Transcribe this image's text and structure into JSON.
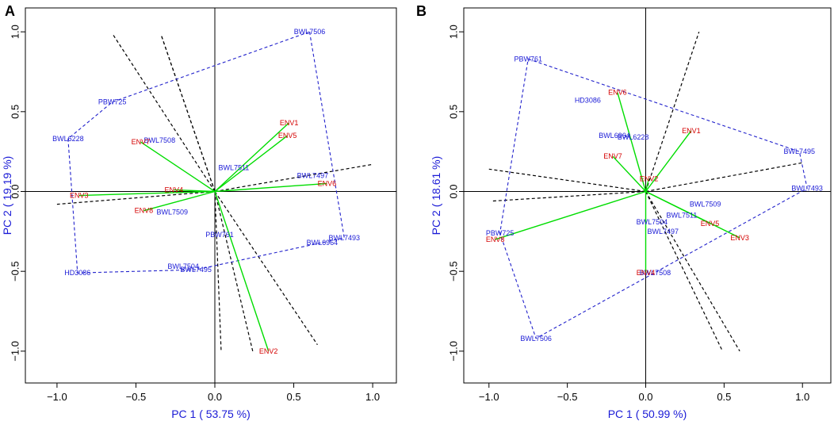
{
  "colors": {
    "genotype": "#1a1ad6",
    "environment": "#d40000",
    "vector": "#00dd00",
    "hull": "#2222cc",
    "sector": "#000000",
    "axis_label": "#1a1ad6"
  },
  "chart_data": [
    {
      "type": "scatter",
      "panel": "A",
      "xlabel": "PC 1 ( 53.75 %)",
      "ylabel": "PC 2 ( 19.19 %)",
      "xlim": [
        -1.1,
        1.1
      ],
      "ylim": [
        -1.1,
        1.1
      ],
      "xticks": [
        "−1.0",
        "−0.5",
        "0.0",
        "0.5",
        "1.0"
      ],
      "yticks": [
        "−1.0",
        "−0.5",
        "0.0",
        "0.5",
        "1.0"
      ],
      "xtick_values": [
        -1.0,
        -0.5,
        0.0,
        0.5,
        1.0
      ],
      "ytick_values": [
        -1.0,
        -0.5,
        0.0,
        0.5,
        1.0
      ],
      "genotypes": [
        {
          "name": "BWL7506",
          "x": 0.6,
          "y": 1.0
        },
        {
          "name": "PBW725",
          "x": -0.65,
          "y": 0.56
        },
        {
          "name": "BWL6228",
          "x": -0.93,
          "y": 0.33
        },
        {
          "name": "BWL7508",
          "x": -0.35,
          "y": 0.32
        },
        {
          "name": "BWL7511",
          "x": 0.12,
          "y": 0.15
        },
        {
          "name": "BWL7497",
          "x": 0.62,
          "y": 0.1
        },
        {
          "name": "BWL7509",
          "x": -0.27,
          "y": -0.13
        },
        {
          "name": "PBW761",
          "x": 0.03,
          "y": -0.27
        },
        {
          "name": "BWL7493",
          "x": 0.82,
          "y": -0.29
        },
        {
          "name": "BWL6964",
          "x": 0.68,
          "y": -0.32
        },
        {
          "name": "BWL7504",
          "x": -0.2,
          "y": -0.47
        },
        {
          "name": "BWL7495",
          "x": -0.12,
          "y": -0.49
        },
        {
          "name": "HD3086",
          "x": -0.87,
          "y": -0.51
        }
      ],
      "environments": [
        {
          "name": "ENV1",
          "x": 0.47,
          "y": 0.43
        },
        {
          "name": "ENV5",
          "x": 0.46,
          "y": 0.35
        },
        {
          "name": "ENV7",
          "x": -0.47,
          "y": 0.31
        },
        {
          "name": "ENV6",
          "x": 0.71,
          "y": 0.05
        },
        {
          "name": "ENV3",
          "x": -0.86,
          "y": -0.025
        },
        {
          "name": "ENV4",
          "x": -0.26,
          "y": 0.01
        },
        {
          "name": "ENV8",
          "x": -0.45,
          "y": -0.12
        },
        {
          "name": "ENV2",
          "x": 0.34,
          "y": -1.0
        }
      ],
      "hull": [
        "BWL7506",
        "BWL7493",
        "BWL6964",
        "BWL7495",
        "HD3086",
        "BWL6228",
        "PBW725"
      ],
      "sector_lines": [
        [
          0.65,
          -0.96
        ],
        [
          -0.65,
          0.99
        ],
        [
          -0.34,
          0.98
        ],
        [
          -0.34,
          0.98
        ],
        [
          1.0,
          0.17
        ],
        [
          -1.0,
          -0.08
        ],
        [
          0.04,
          -1.0
        ],
        [
          0.24,
          -1.0
        ]
      ]
    },
    {
      "type": "scatter",
      "panel": "B",
      "xlabel": "PC 1 ( 50.99 %)",
      "ylabel": "PC 2 ( 18.61 %)",
      "xlim": [
        -1.1,
        1.1
      ],
      "ylim": [
        -1.1,
        1.1
      ],
      "xticks": [
        "−1.0",
        "−0.5",
        "0.0",
        "0.5",
        "1.0"
      ],
      "yticks": [
        "−1.0",
        "−0.5",
        "0.0",
        "0.5",
        "1.0"
      ],
      "xtick_values": [
        -1.0,
        -0.5,
        0.0,
        0.5,
        1.0
      ],
      "ytick_values": [
        -1.0,
        -0.5,
        0.0,
        0.5,
        1.0
      ],
      "genotypes": [
        {
          "name": "PBW761",
          "x": -0.75,
          "y": 0.83
        },
        {
          "name": "HD3086",
          "x": -0.37,
          "y": 0.57
        },
        {
          "name": "BWL6964",
          "x": -0.2,
          "y": 0.35
        },
        {
          "name": "BWL6228",
          "x": -0.08,
          "y": 0.34
        },
        {
          "name": "BWL7495",
          "x": 0.98,
          "y": 0.25
        },
        {
          "name": "BWL7493",
          "x": 1.03,
          "y": 0.02
        },
        {
          "name": "BWL7509",
          "x": 0.38,
          "y": -0.08
        },
        {
          "name": "BWL7511",
          "x": 0.23,
          "y": -0.15
        },
        {
          "name": "BWL7504",
          "x": 0.04,
          "y": -0.19
        },
        {
          "name": "BWL7497",
          "x": 0.11,
          "y": -0.25
        },
        {
          "name": "PBW725",
          "x": -0.93,
          "y": -0.26
        },
        {
          "name": "BWL7508",
          "x": 0.06,
          "y": -0.51
        },
        {
          "name": "BWL7506",
          "x": -0.7,
          "y": -0.92
        }
      ],
      "environments": [
        {
          "name": "ENV6",
          "x": -0.18,
          "y": 0.62
        },
        {
          "name": "ENV1",
          "x": 0.29,
          "y": 0.38
        },
        {
          "name": "ENV7",
          "x": -0.21,
          "y": 0.22
        },
        {
          "name": "ENV2",
          "x": 0.02,
          "y": 0.08
        },
        {
          "name": "ENV5",
          "x": 0.41,
          "y": -0.2
        },
        {
          "name": "ENV3",
          "x": 0.6,
          "y": -0.29
        },
        {
          "name": "ENV8",
          "x": -0.96,
          "y": -0.3
        },
        {
          "name": "ENV4",
          "x": 0.0,
          "y": -0.51
        }
      ],
      "hull": [
        "PBW761",
        "BWL7495",
        "BWL7493",
        "BWL7506",
        "PBW725"
      ],
      "sector_lines": [
        [
          0.34,
          1.0
        ],
        [
          0.49,
          -1.0
        ],
        [
          0.6,
          -1.0
        ],
        [
          1.0,
          0.18
        ],
        [
          -1.0,
          0.14
        ],
        [
          -0.98,
          -0.06
        ]
      ]
    }
  ]
}
